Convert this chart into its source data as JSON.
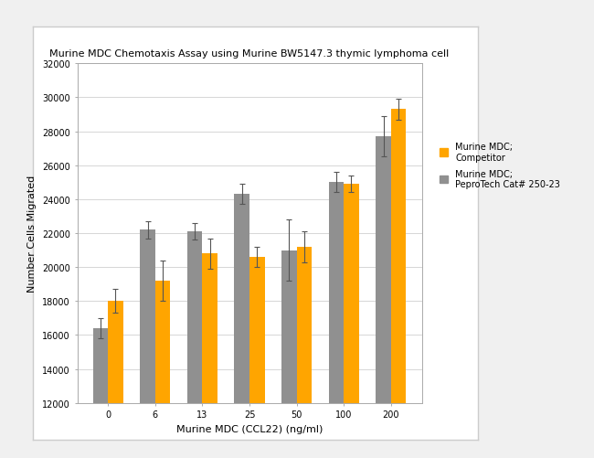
{
  "title": "Murine MDC Chemotaxis Assay using Murine BW5147.3 thymic lymphoma cell",
  "xlabel": "Murine MDC (CCL22) (ng/ml)",
  "ylabel": "Number Cells Migrated",
  "categories": [
    "0",
    "6",
    "13",
    "25",
    "50",
    "100",
    "200"
  ],
  "competitor_values": [
    18000,
    19200,
    20800,
    20600,
    21200,
    24900,
    29300
  ],
  "competitor_errors": [
    700,
    1200,
    900,
    600,
    900,
    500,
    600
  ],
  "peprotech_values": [
    16400,
    22200,
    22100,
    24300,
    21000,
    25000,
    27700
  ],
  "peprotech_errors": [
    600,
    500,
    500,
    600,
    1800,
    600,
    1200
  ],
  "competitor_color": "#FFA500",
  "peprotech_color": "#909090",
  "ylim_min": 12000,
  "ylim_max": 32000,
  "yticks": [
    12000,
    14000,
    16000,
    18000,
    20000,
    22000,
    24000,
    26000,
    28000,
    30000,
    32000
  ],
  "legend_label_1": "Murine MDC;\nCompetitor",
  "legend_label_2": "Murine MDC;\nPeproTech Cat# 250-23",
  "title_fontsize": 8,
  "axis_label_fontsize": 8,
  "tick_fontsize": 7,
  "legend_fontsize": 7,
  "bar_width": 0.32,
  "background_color": "#f0f0f0",
  "plot_bg_color": "#ffffff",
  "panel_bg_color": "#ffffff"
}
